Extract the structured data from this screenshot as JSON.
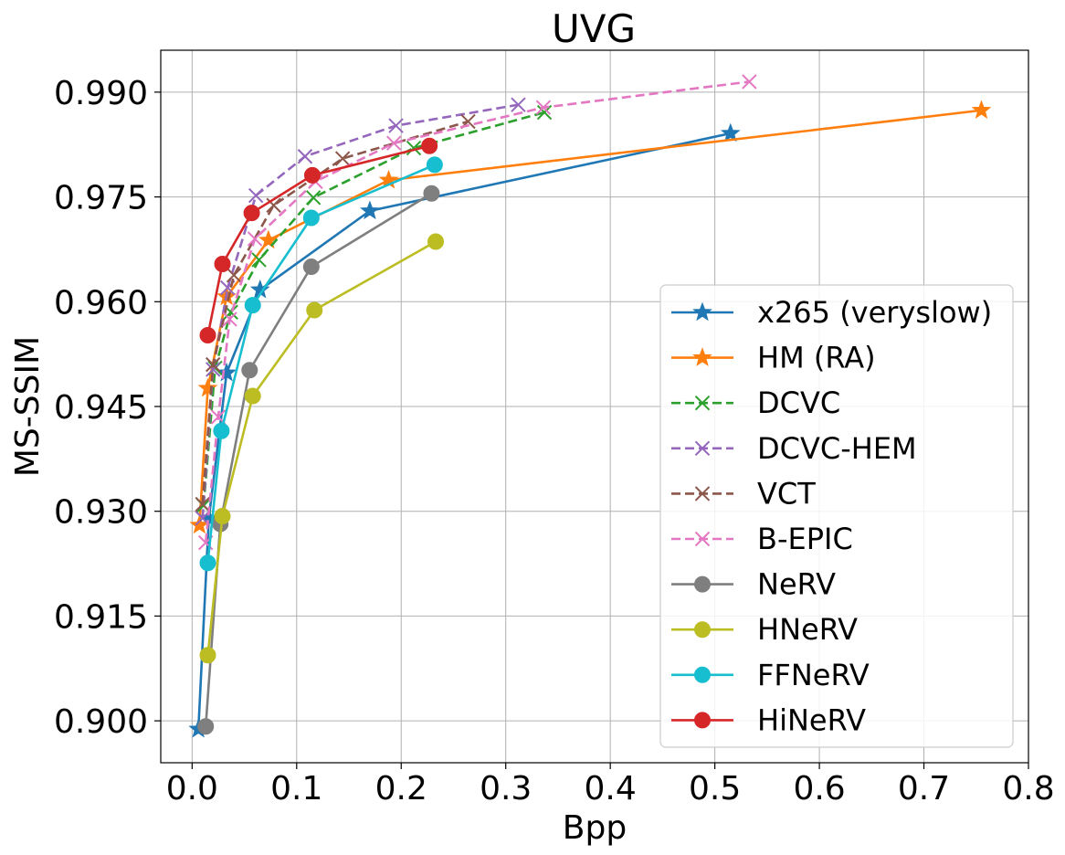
{
  "chart_data": {
    "type": "line",
    "title": "UVG",
    "xlabel": "Bpp",
    "ylabel": "MS-SSIM",
    "xlim": [
      -0.03,
      0.8
    ],
    "ylim": [
      0.894,
      0.996
    ],
    "xticks": [
      0.0,
      0.1,
      0.2,
      0.3,
      0.4,
      0.5,
      0.6,
      0.7,
      0.8
    ],
    "xtick_labels": [
      "0.0",
      "0.1",
      "0.2",
      "0.3",
      "0.4",
      "0.5",
      "0.6",
      "0.7",
      "0.8"
    ],
    "yticks": [
      0.9,
      0.915,
      0.93,
      0.945,
      0.96,
      0.975,
      0.99
    ],
    "ytick_labels": [
      "0.900",
      "0.915",
      "0.930",
      "0.945",
      "0.960",
      "0.975",
      "0.990"
    ],
    "grid": true,
    "legend_position": "lower-right",
    "series": [
      {
        "name": "x265 (veryslow)",
        "color": "#1f77b4",
        "marker": "star",
        "dash": "solid",
        "x": [
          0.006,
          0.016,
          0.033,
          0.065,
          0.17,
          0.515
        ],
        "y": [
          0.8988,
          0.929,
          0.9498,
          0.9617,
          0.973,
          0.9841
        ]
      },
      {
        "name": "HM (RA)",
        "color": "#ff7f0e",
        "marker": "star",
        "dash": "solid",
        "x": [
          0.007,
          0.015,
          0.033,
          0.073,
          0.188,
          0.755
        ],
        "y": [
          0.928,
          0.9476,
          0.9607,
          0.9688,
          0.9774,
          0.9874
        ]
      },
      {
        "name": "DCVC",
        "color": "#2ca02c",
        "marker": "x",
        "dash": "dashed",
        "x": [
          0.011,
          0.022,
          0.037,
          0.064,
          0.116,
          0.212,
          0.337
        ],
        "y": [
          0.9308,
          0.9505,
          0.9585,
          0.966,
          0.9749,
          0.982,
          0.9871
        ]
      },
      {
        "name": "DCVC-HEM",
        "color": "#9467bd",
        "marker": "x",
        "dash": "dashed",
        "x": [
          0.01,
          0.02,
          0.034,
          0.061,
          0.108,
          0.195,
          0.312
        ],
        "y": [
          0.929,
          0.9503,
          0.962,
          0.9752,
          0.9808,
          0.9852,
          0.9882
        ]
      },
      {
        "name": "VCT",
        "color": "#8c564b",
        "marker": "x",
        "dash": "dashed",
        "x": [
          0.01,
          0.02,
          0.04,
          0.078,
          0.144,
          0.264
        ],
        "y": [
          0.931,
          0.951,
          0.9638,
          0.9738,
          0.9805,
          0.9858
        ]
      },
      {
        "name": "B-EPIC",
        "color": "#e377c2",
        "marker": "x",
        "dash": "dashed",
        "x": [
          0.013,
          0.025,
          0.036,
          0.06,
          0.118,
          0.193,
          0.336,
          0.533
        ],
        "y": [
          0.9255,
          0.9435,
          0.9575,
          0.969,
          0.9772,
          0.9827,
          0.9878,
          0.9915
        ]
      },
      {
        "name": "NeRV",
        "color": "#7f7f7f",
        "marker": "circle",
        "dash": "solid",
        "x": [
          0.013,
          0.027,
          0.055,
          0.114,
          0.229
        ],
        "y": [
          0.8992,
          0.9282,
          0.9502,
          0.965,
          0.9755
        ]
      },
      {
        "name": "HNeRV",
        "color": "#bcbd22",
        "marker": "circle",
        "dash": "solid",
        "x": [
          0.015,
          0.029,
          0.058,
          0.117,
          0.233
        ],
        "y": [
          0.9094,
          0.9293,
          0.9465,
          0.9588,
          0.9686
        ]
      },
      {
        "name": "FFNeRV",
        "color": "#17becf",
        "marker": "circle",
        "dash": "solid",
        "x": [
          0.015,
          0.028,
          0.058,
          0.114,
          0.232
        ],
        "y": [
          0.9226,
          0.9415,
          0.9595,
          0.972,
          0.9796
        ]
      },
      {
        "name": "HiNeRV",
        "color": "#d62728",
        "marker": "circle",
        "dash": "solid",
        "x": [
          0.015,
          0.029,
          0.057,
          0.115,
          0.227
        ],
        "y": [
          0.9552,
          0.9654,
          0.9727,
          0.9781,
          0.9823
        ]
      }
    ]
  }
}
